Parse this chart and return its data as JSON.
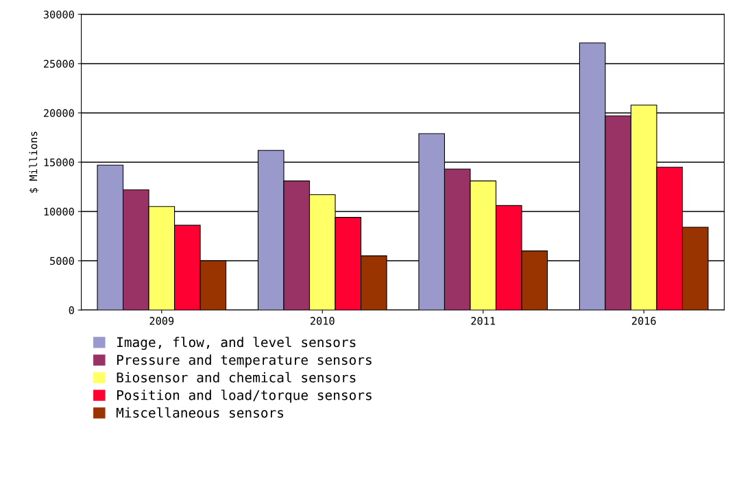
{
  "chart_data": {
    "type": "bar",
    "ylabel": "$ Millions",
    "categories": [
      "2009",
      "2010",
      "2011",
      "2016"
    ],
    "series": [
      {
        "name": "Image, flow, and level sensors",
        "color": "#9999cc",
        "values": [
          14700,
          16200,
          17900,
          27100
        ]
      },
      {
        "name": "Pressure and temperature sensors",
        "color": "#993366",
        "values": [
          12200,
          13100,
          14300,
          19700
        ]
      },
      {
        "name": "Biosensor and chemical sensors",
        "color": "#ffff66",
        "values": [
          10500,
          11700,
          13100,
          20800
        ]
      },
      {
        "name": "Position and load/torque sensors",
        "color": "#ff0033",
        "values": [
          8600,
          9400,
          10600,
          14500
        ]
      },
      {
        "name": "Miscellaneous sensors",
        "color": "#993300",
        "values": [
          5000,
          5500,
          6000,
          8400
        ]
      }
    ],
    "ylim": [
      0,
      30000
    ],
    "yticks": [
      0,
      5000,
      10000,
      15000,
      20000,
      25000,
      30000
    ],
    "grid": "y",
    "legend": "bottom"
  }
}
